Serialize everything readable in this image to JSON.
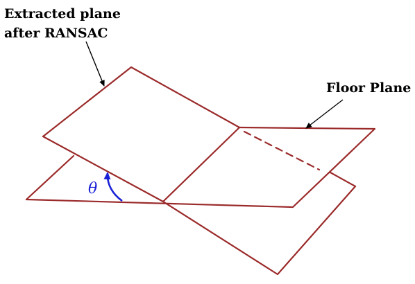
{
  "labels": {
    "extracted_line1": "Extracted plane",
    "extracted_line2": "after RANSAC",
    "floor": "Floor Plane",
    "angle": "θ"
  },
  "colors": {
    "plane": "#9b2a2a",
    "angle_arrow": "#1a22d6",
    "pointer": "#000000"
  }
}
